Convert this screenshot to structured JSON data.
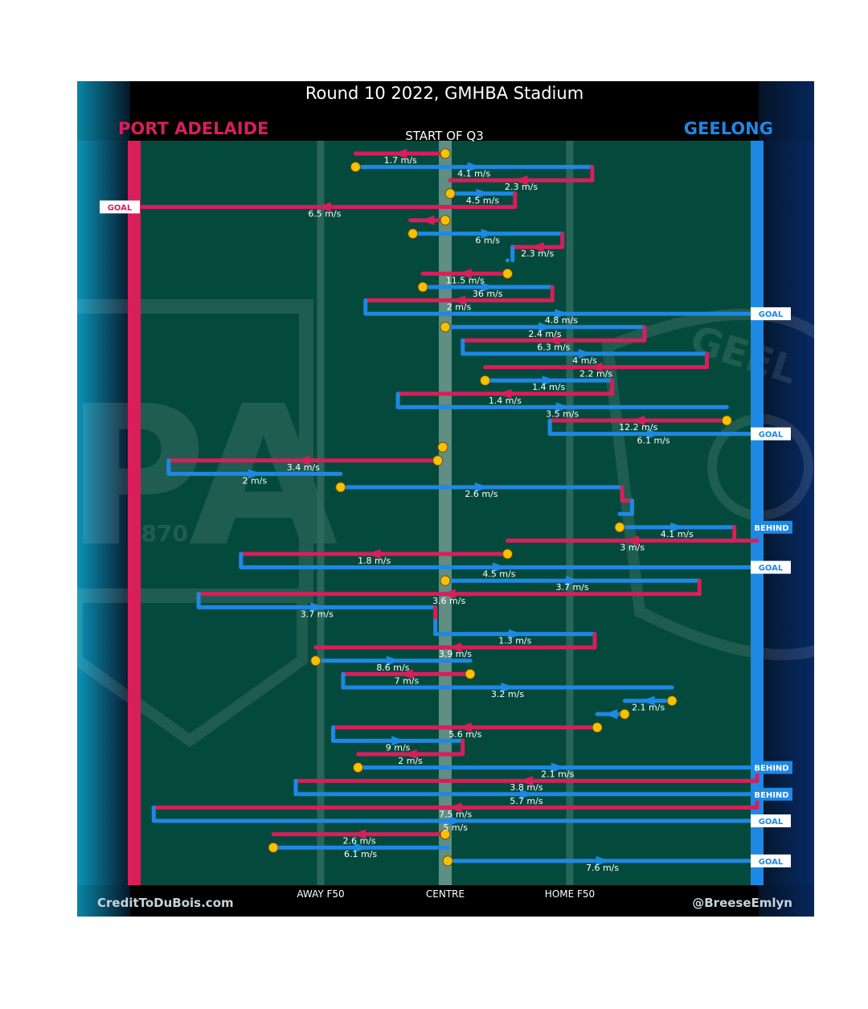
{
  "header": {
    "title": "Round 10 2022, GMHBA Stadium",
    "subtitle": "START OF Q3",
    "team_left": "PORT ADELAIDE",
    "team_right": "GEELONG"
  },
  "footer": {
    "credit_left": "CreditToDuBois.com",
    "credit_right": "@BreeseEmlyn"
  },
  "watermark": {
    "left_year": "1870",
    "right_text": "GEEL"
  },
  "colors": {
    "port": "#d81e5b",
    "geelong": "#1e88e5",
    "field": "#044a3c",
    "start_marker": "#f6c200"
  },
  "chart_data": {
    "type": "line",
    "title": "Round 10 2022, GMHBA Stadium",
    "subtitle": "START OF Q3",
    "x_axis": {
      "ticks": [
        {
          "x": -50,
          "label": "AWAY F50"
        },
        {
          "x": 0,
          "label": "CENTRE"
        },
        {
          "x": 50,
          "label": "HOME F50"
        }
      ],
      "range": [
        -125,
        125
      ],
      "left_team": "PORT ADELAIDE",
      "right_team": "GEELONG"
    },
    "legend": false,
    "segments": [
      {
        "team": "port",
        "x0": 0,
        "x1": -36,
        "speed": "1.7 m/s",
        "start": true
      },
      {
        "team": "geelong",
        "x0": -36,
        "x1": 59,
        "speed": "4.1 m/s",
        "start": true
      },
      {
        "team": "port",
        "x0": 59,
        "x1": 2,
        "speed": "2.3 m/s"
      },
      {
        "team": "geelong",
        "x0": 2,
        "x1": 28,
        "speed": "4.5 m/s",
        "start": true
      },
      {
        "team": "port",
        "x0": 28,
        "x1": -125,
        "speed": "6.5 m/s",
        "end": "GOAL"
      },
      {
        "team": "port",
        "x0": 0,
        "x1": -14,
        "speed": "",
        "start": true
      },
      {
        "team": "geelong",
        "x0": -13,
        "x1": 47,
        "speed": "6 m/s",
        "start": true
      },
      {
        "team": "port",
        "x0": 47,
        "x1": 27,
        "speed": "2.3 m/s"
      },
      {
        "team": "geelong",
        "x0": 25,
        "x1": 25,
        "speed": ""
      },
      {
        "team": "port",
        "x0": 25,
        "x1": -9,
        "speed": "11.5 m/s",
        "start": true
      },
      {
        "team": "geelong",
        "x0": -9,
        "x1": 43,
        "speed": "36 m/s",
        "start": true
      },
      {
        "team": "port",
        "x0": 43,
        "x1": -32,
        "speed": "2 m/s"
      },
      {
        "team": "geelong",
        "x0": -32,
        "x1": 125,
        "speed": "4.8 m/s",
        "end": "GOAL"
      },
      {
        "team": "geelong",
        "x0": 0,
        "x1": 80,
        "speed": "2.4 m/s",
        "start": true
      },
      {
        "team": "port",
        "x0": 80,
        "x1": 7,
        "speed": "6.3 m/s"
      },
      {
        "team": "geelong",
        "x0": 7,
        "x1": 105,
        "speed": "4 m/s"
      },
      {
        "team": "port",
        "x0": 105,
        "x1": 16,
        "speed": "2.2 m/s"
      },
      {
        "team": "geelong",
        "x0": 16,
        "x1": 67,
        "speed": "1.4 m/s",
        "start": true
      },
      {
        "team": "port",
        "x0": 67,
        "x1": -19,
        "speed": "1.4 m/s"
      },
      {
        "team": "geelong",
        "x0": -19,
        "x1": 113,
        "speed": "3.5 m/s"
      },
      {
        "team": "port",
        "x0": 113,
        "x1": 42,
        "speed": "12.2 m/s",
        "start": true
      },
      {
        "team": "geelong",
        "x0": 42,
        "x1": 125,
        "speed": "6.1 m/s",
        "end": "GOAL"
      },
      {
        "team": "port",
        "x0": -1,
        "x1": -1,
        "speed": "",
        "start": true
      },
      {
        "team": "port",
        "x0": -3,
        "x1": -111,
        "speed": "3.4 m/s",
        "start": true
      },
      {
        "team": "geelong",
        "x0": -111,
        "x1": -42,
        "speed": "2 m/s"
      },
      {
        "team": "geelong",
        "x0": -42,
        "x1": 71,
        "speed": "2.6 m/s",
        "start": true
      },
      {
        "team": "port",
        "x0": 71,
        "x1": 75,
        "speed": ""
      },
      {
        "team": "geelong",
        "x0": 75,
        "x1": 70,
        "speed": ""
      },
      {
        "team": "geelong",
        "x0": 70,
        "x1": 116,
        "speed": "4.1 m/s",
        "start": true,
        "end": "BEHIND"
      },
      {
        "team": "port",
        "x0": 125,
        "x1": 25,
        "speed": "3 m/s"
      },
      {
        "team": "port",
        "x0": 25,
        "x1": -82,
        "speed": "1.8 m/s",
        "start": true
      },
      {
        "team": "geelong",
        "x0": -82,
        "x1": 125,
        "speed": "4.5 m/s",
        "end": "GOAL"
      },
      {
        "team": "geelong",
        "x0": 0,
        "x1": 102,
        "speed": "3.7 m/s",
        "start": true
      },
      {
        "team": "port",
        "x0": 102,
        "x1": -99,
        "speed": "3.6 m/s"
      },
      {
        "team": "geelong",
        "x0": -99,
        "x1": -4,
        "speed": "3.7 m/s"
      },
      {
        "team": "port",
        "x0": -4,
        "x1": -4,
        "speed": ""
      },
      {
        "team": "geelong",
        "x0": -4,
        "x1": 60,
        "speed": "1.3 m/s"
      },
      {
        "team": "port",
        "x0": 60,
        "x1": -52,
        "speed": "3.9 m/s"
      },
      {
        "team": "geelong",
        "x0": -52,
        "x1": 10,
        "speed": "8.6 m/s",
        "start": true
      },
      {
        "team": "port",
        "x0": 10,
        "x1": -41,
        "speed": "7 m/s",
        "start": true
      },
      {
        "team": "geelong",
        "x0": -41,
        "x1": 91,
        "speed": "3.2 m/s"
      },
      {
        "team": "geelong",
        "x0": 91,
        "x1": 72,
        "speed": "2.1 m/s",
        "start": true
      },
      {
        "team": "geelong",
        "x0": 72,
        "x1": 61,
        "speed": "",
        "start": true
      },
      {
        "team": "port",
        "x0": 61,
        "x1": -45,
        "speed": "5.6 m/s",
        "start": true
      },
      {
        "team": "geelong",
        "x0": -45,
        "x1": 7,
        "speed": "9 m/s"
      },
      {
        "team": "port",
        "x0": 7,
        "x1": -35,
        "speed": "2 m/s"
      },
      {
        "team": "geelong",
        "x0": -35,
        "x1": 125,
        "speed": "2.1 m/s",
        "start": true,
        "end": "BEHIND"
      },
      {
        "team": "port",
        "x0": 125,
        "x1": -60,
        "speed": "3.8 m/s"
      },
      {
        "team": "geelong",
        "x0": -60,
        "x1": 125,
        "speed": "5.7 m/s",
        "end": "BEHIND"
      },
      {
        "team": "port",
        "x0": 125,
        "x1": -117,
        "speed": "7.5 m/s"
      },
      {
        "team": "geelong",
        "x0": -117,
        "x1": 125,
        "speed": "5 m/s",
        "end": "GOAL"
      },
      {
        "team": "port",
        "x0": 0,
        "x1": -69,
        "speed": "2.6 m/s",
        "start": true
      },
      {
        "team": "geelong",
        "x0": -69,
        "x1": 1,
        "speed": "6.1 m/s",
        "start": true
      },
      {
        "team": "geelong",
        "x0": 1,
        "x1": 125,
        "speed": "7.6 m/s",
        "start": true,
        "end": "GOAL"
      }
    ]
  }
}
